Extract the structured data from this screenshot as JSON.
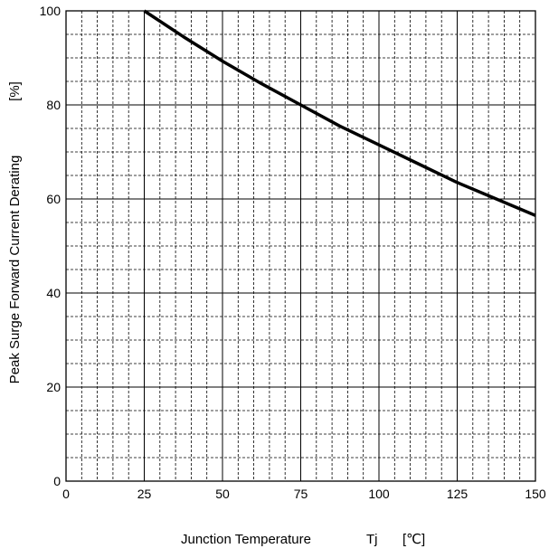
{
  "chart_data": {
    "type": "line",
    "title": "",
    "xlabel": "Junction Temperature",
    "xlabel_symbol": "Tj",
    "xlabel_unit": "[℃]",
    "ylabel": "Peak Surge Forward Current Derating",
    "ylabel_unit": "[%]",
    "xlim": [
      0,
      150
    ],
    "ylim": [
      0,
      100
    ],
    "x_major_ticks": [
      0,
      25,
      50,
      75,
      100,
      125,
      150
    ],
    "x_tick_labels": [
      "0",
      "25",
      "50",
      "75",
      "100",
      "125",
      "150"
    ],
    "y_major_ticks": [
      0,
      20,
      40,
      60,
      80,
      100
    ],
    "y_tick_labels": [
      "0",
      "20",
      "40",
      "60",
      "80",
      "100"
    ],
    "x_minor_step": 5,
    "y_minor_step": 5,
    "grid": true,
    "legend": "none",
    "line_color": "#000000",
    "series": [
      {
        "x": [
          25,
          37.5,
          50,
          62.5,
          75,
          87.5,
          100,
          112.5,
          125,
          137.5,
          150
        ],
        "y": [
          100,
          94.5,
          89.3,
          84.5,
          80,
          75.5,
          71.5,
          67.5,
          63.5,
          60,
          56.5
        ]
      }
    ]
  }
}
